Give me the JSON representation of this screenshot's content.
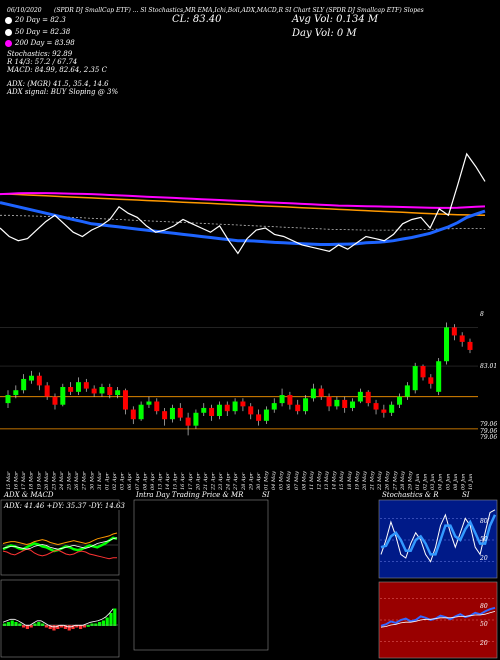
{
  "header": {
    "top_line": "(SPDR DJ SmallCap ETF) ... Sl Stochastics,MR  EMA,Ichi,Boll,ADX,MACD,R  SI Chart  SLY  (SPDR DJ Smallcap ETF) Slopes",
    "date": "06/10/2020",
    "cl_label": "CL: 83.40",
    "avg_vol_label": "Avg Vol: 0.134   M",
    "day_vol_label": "Day Vol: 0   M",
    "sma_lines": [
      {
        "text": "20  Day = 82.3",
        "color": "#ffffff"
      },
      {
        "text": "50  Day = 82.38",
        "color": "#ffffff"
      },
      {
        "text": "200  Day = 83.98",
        "color": "#ffffff"
      }
    ],
    "stoch_line": "Stochastics: 92.89",
    "r_line": "R                    14/3: 57.2 / 67.74",
    "macd_line": "MACD: 84.99, 82.64, 2.35 C",
    "adx_line": "ADX:                 (MGR) 41.5,  35.4,  14.6",
    "adx_signal_line": "ADX  signal:                        BUY Sloping @ 3%"
  },
  "colors": {
    "ema20": "#ffffff",
    "sma50": "#ffffff",
    "sma200": "#ff00ff",
    "ema_blue": "#1e64ff",
    "orange": "#ff9900",
    "bull": "#00ff00",
    "bear": "#ff0000",
    "grid": "#555555"
  },
  "chart_data": [
    {
      "type": "line",
      "name": "price-ema-panel",
      "series": [
        {
          "name": "price",
          "values": [
            82.4,
            82.0,
            81.8,
            81.9,
            82.3,
            82.7,
            83.0,
            82.6,
            82.2,
            82.0,
            82.3,
            82.5,
            82.8,
            83.4,
            83.1,
            82.9,
            82.5,
            82.2,
            82.3,
            82.5,
            82.8,
            82.6,
            82.4,
            82.2,
            82.5,
            81.8,
            81.2,
            81.9,
            82.3,
            82.4,
            82.1,
            82.0,
            81.8,
            81.6,
            81.5,
            81.4,
            81.3,
            81.6,
            81.4,
            81.7,
            82.0,
            81.9,
            81.8,
            82.1,
            82.6,
            82.8,
            82.9,
            82.4,
            83.3,
            83.0,
            84.4,
            85.9,
            85.3,
            84.6
          ]
        },
        {
          "name": "ema-blue",
          "values": [
            83.6,
            83.5,
            83.4,
            83.3,
            83.2,
            83.1,
            83.0,
            82.9,
            82.8,
            82.7,
            82.6,
            82.55,
            82.5,
            82.45,
            82.4,
            82.35,
            82.3,
            82.25,
            82.2,
            82.15,
            82.1,
            82.05,
            82.0,
            81.95,
            81.9,
            81.85,
            81.8,
            81.8,
            81.78,
            81.75,
            81.72,
            81.7,
            81.68,
            81.66,
            81.64,
            81.62,
            81.62,
            81.63,
            81.64,
            81.66,
            81.7,
            81.72,
            81.75,
            81.8,
            81.88,
            81.95,
            82.05,
            82.15,
            82.3,
            82.45,
            82.65,
            82.9,
            83.05,
            83.2
          ]
        },
        {
          "name": "ema-orange",
          "values": [
            84.0,
            84.0,
            83.98,
            83.96,
            83.94,
            83.92,
            83.9,
            83.88,
            83.86,
            83.84,
            83.82,
            83.8,
            83.78,
            83.76,
            83.74,
            83.72,
            83.7,
            83.68,
            83.66,
            83.64,
            83.62,
            83.6,
            83.58,
            83.56,
            83.54,
            83.52,
            83.5,
            83.48,
            83.46,
            83.44,
            83.42,
            83.4,
            83.38,
            83.36,
            83.34,
            83.32,
            83.3,
            83.28,
            83.26,
            83.24,
            83.22,
            83.2,
            83.18,
            83.16,
            83.14,
            83.12,
            83.1,
            83.08,
            83.06,
            83.04,
            83.03,
            83.02,
            83.01,
            83.0
          ]
        },
        {
          "name": "sma200",
          "values": [
            84.0,
            84.02,
            84.04,
            84.05,
            84.05,
            84.05,
            84.04,
            84.03,
            84.02,
            84.01,
            84.0,
            83.98,
            83.96,
            83.94,
            83.92,
            83.9,
            83.88,
            83.86,
            83.84,
            83.82,
            83.8,
            83.78,
            83.76,
            83.74,
            83.72,
            83.7,
            83.68,
            83.66,
            83.64,
            83.62,
            83.6,
            83.58,
            83.56,
            83.54,
            83.52,
            83.5,
            83.48,
            83.46,
            83.45,
            83.44,
            83.43,
            83.42,
            83.41,
            83.4,
            83.39,
            83.38,
            83.37,
            83.36,
            83.35,
            83.35,
            83.36,
            83.38,
            83.4,
            83.42
          ]
        },
        {
          "name": "sma50",
          "values": [
            83.0,
            83.0,
            82.98,
            82.97,
            82.96,
            82.95,
            82.94,
            82.92,
            82.9,
            82.88,
            82.86,
            82.84,
            82.82,
            82.8,
            82.78,
            82.76,
            82.74,
            82.72,
            82.7,
            82.68,
            82.66,
            82.64,
            82.62,
            82.6,
            82.58,
            82.56,
            82.54,
            82.52,
            82.5,
            82.48,
            82.46,
            82.44,
            82.42,
            82.4,
            82.38,
            82.36,
            82.34,
            82.33,
            82.32,
            82.31,
            82.3,
            82.3,
            82.3,
            82.3,
            82.31,
            82.32,
            82.33,
            82.34,
            82.35,
            82.36,
            82.37,
            82.38,
            82.38,
            82.38
          ]
        }
      ],
      "ylim": [
        79.0,
        87.5
      ]
    },
    {
      "type": "candlestick",
      "name": "candle-panel",
      "ylim": [
        79.0,
        88.0
      ],
      "right_labels": [
        "8",
        "83.01",
        "79.06",
        "79.06",
        "79.06"
      ],
      "dates": [
        "15 Mar",
        "16 Mar",
        "17 Mar",
        "18 Mar",
        "19 Mar",
        "20 Mar",
        "23 Mar",
        "24 Mar",
        "25 Mar",
        "26 Mar",
        "27 Mar",
        "30 Mar",
        "31 Mar",
        "01 Apr",
        "02 Apr",
        "03 Apr",
        "06 Apr",
        "07 Apr",
        "08 Apr",
        "09 Apr",
        "13 Apr",
        "14 Apr",
        "15 Apr",
        "16 Apr",
        "17 Apr",
        "20 Apr",
        "21 Apr",
        "22 Apr",
        "23 Apr",
        "24 Apr",
        "27 Apr",
        "28 Apr",
        "29 Apr",
        "30 Apr",
        "01 May",
        "04 May",
        "05 May",
        "06 May",
        "07 May",
        "08 May",
        "11 May",
        "12 May",
        "13 May",
        "14 May",
        "15 May",
        "18 May",
        "19 May",
        "20 May",
        "21 May",
        "22 May",
        "26 May",
        "27 May",
        "28 May",
        "29 May",
        "01 Jun",
        "02 Jun",
        "03 Jun",
        "04 Jun",
        "05 Jun",
        "08 Jun",
        "09 Jun",
        "10 Jun"
      ],
      "candles": [
        {
          "o": 81.6,
          "c": 82.1,
          "h": 82.4,
          "l": 81.3
        },
        {
          "o": 82.1,
          "c": 82.4,
          "h": 82.7,
          "l": 81.9
        },
        {
          "o": 82.4,
          "c": 83.1,
          "h": 83.4,
          "l": 82.2
        },
        {
          "o": 83.0,
          "c": 83.3,
          "h": 83.6,
          "l": 82.8
        },
        {
          "o": 83.3,
          "c": 82.7,
          "h": 83.5,
          "l": 82.4
        },
        {
          "o": 82.7,
          "c": 82.0,
          "h": 82.9,
          "l": 81.8
        },
        {
          "o": 82.0,
          "c": 81.5,
          "h": 82.2,
          "l": 81.2
        },
        {
          "o": 81.5,
          "c": 82.6,
          "h": 82.8,
          "l": 81.4
        },
        {
          "o": 82.6,
          "c": 82.3,
          "h": 82.9,
          "l": 82.1
        },
        {
          "o": 82.3,
          "c": 82.9,
          "h": 83.2,
          "l": 82.1
        },
        {
          "o": 82.9,
          "c": 82.5,
          "h": 83.1,
          "l": 82.3
        },
        {
          "o": 82.5,
          "c": 82.2,
          "h": 82.7,
          "l": 82.0
        },
        {
          "o": 82.2,
          "c": 82.6,
          "h": 82.8,
          "l": 82.0
        },
        {
          "o": 82.6,
          "c": 82.1,
          "h": 82.8,
          "l": 81.9
        },
        {
          "o": 82.1,
          "c": 82.4,
          "h": 82.6,
          "l": 81.9
        },
        {
          "o": 82.4,
          "c": 81.2,
          "h": 82.5,
          "l": 80.9
        },
        {
          "o": 81.2,
          "c": 80.6,
          "h": 81.4,
          "l": 80.3
        },
        {
          "o": 80.6,
          "c": 81.5,
          "h": 81.7,
          "l": 80.5
        },
        {
          "o": 81.5,
          "c": 81.7,
          "h": 82.0,
          "l": 81.3
        },
        {
          "o": 81.7,
          "c": 81.1,
          "h": 81.9,
          "l": 80.9
        },
        {
          "o": 81.1,
          "c": 80.6,
          "h": 81.3,
          "l": 80.2
        },
        {
          "o": 80.6,
          "c": 81.3,
          "h": 81.5,
          "l": 80.4
        },
        {
          "o": 81.3,
          "c": 80.7,
          "h": 81.6,
          "l": 80.5
        },
        {
          "o": 80.7,
          "c": 80.2,
          "h": 81.0,
          "l": 79.6
        },
        {
          "o": 80.2,
          "c": 81.0,
          "h": 81.2,
          "l": 80.0
        },
        {
          "o": 81.0,
          "c": 81.3,
          "h": 81.6,
          "l": 80.8
        },
        {
          "o": 81.3,
          "c": 80.8,
          "h": 81.5,
          "l": 80.5
        },
        {
          "o": 80.8,
          "c": 81.5,
          "h": 81.7,
          "l": 80.6
        },
        {
          "o": 81.5,
          "c": 81.1,
          "h": 81.7,
          "l": 80.8
        },
        {
          "o": 81.1,
          "c": 81.7,
          "h": 81.9,
          "l": 80.9
        },
        {
          "o": 81.7,
          "c": 81.4,
          "h": 81.9,
          "l": 81.1
        },
        {
          "o": 81.4,
          "c": 80.9,
          "h": 81.6,
          "l": 80.6
        },
        {
          "o": 80.9,
          "c": 80.5,
          "h": 81.2,
          "l": 80.2
        },
        {
          "o": 80.5,
          "c": 81.2,
          "h": 81.4,
          "l": 80.3
        },
        {
          "o": 81.2,
          "c": 81.6,
          "h": 81.9,
          "l": 81.0
        },
        {
          "o": 81.6,
          "c": 82.1,
          "h": 82.5,
          "l": 81.4
        },
        {
          "o": 82.1,
          "c": 81.5,
          "h": 82.3,
          "l": 81.2
        },
        {
          "o": 81.5,
          "c": 81.1,
          "h": 81.8,
          "l": 80.9
        },
        {
          "o": 81.1,
          "c": 81.9,
          "h": 82.1,
          "l": 80.9
        },
        {
          "o": 81.9,
          "c": 82.5,
          "h": 82.8,
          "l": 81.7
        },
        {
          "o": 82.5,
          "c": 82.0,
          "h": 82.7,
          "l": 81.8
        },
        {
          "o": 82.0,
          "c": 81.4,
          "h": 82.2,
          "l": 81.1
        },
        {
          "o": 81.4,
          "c": 81.8,
          "h": 82.0,
          "l": 81.2
        },
        {
          "o": 81.8,
          "c": 81.3,
          "h": 82.0,
          "l": 81.0
        },
        {
          "o": 81.3,
          "c": 81.7,
          "h": 81.9,
          "l": 81.1
        },
        {
          "o": 81.7,
          "c": 82.3,
          "h": 82.5,
          "l": 81.6
        },
        {
          "o": 82.3,
          "c": 81.6,
          "h": 82.4,
          "l": 81.4
        },
        {
          "o": 81.6,
          "c": 81.2,
          "h": 81.8,
          "l": 80.9
        },
        {
          "o": 81.2,
          "c": 81.0,
          "h": 81.5,
          "l": 80.7
        },
        {
          "o": 81.0,
          "c": 81.5,
          "h": 81.7,
          "l": 80.8
        },
        {
          "o": 81.5,
          "c": 82.0,
          "h": 82.2,
          "l": 81.3
        },
        {
          "o": 82.0,
          "c": 82.7,
          "h": 82.9,
          "l": 81.8
        },
        {
          "o": 82.4,
          "c": 83.9,
          "h": 84.1,
          "l": 82.2
        },
        {
          "o": 83.9,
          "c": 83.2,
          "h": 84.0,
          "l": 83.0
        },
        {
          "o": 83.2,
          "c": 82.8,
          "h": 83.4,
          "l": 82.5
        },
        {
          "o": 82.3,
          "c": 84.2,
          "h": 84.4,
          "l": 82.1
        },
        {
          "o": 84.2,
          "c": 86.3,
          "h": 86.6,
          "l": 84.0
        },
        {
          "o": 86.3,
          "c": 85.8,
          "h": 86.5,
          "l": 85.5
        },
        {
          "o": 85.8,
          "c": 85.4,
          "h": 86.0,
          "l": 85.1
        },
        {
          "o": 85.4,
          "c": 84.9,
          "h": 85.6,
          "l": 84.7
        }
      ]
    },
    {
      "type": "line",
      "name": "adx-macd-panel",
      "title": "ADX  & MACD",
      "subtitle": "ADX: 41.46  +DY: 35.37  -DY: 14.63",
      "series": [
        {
          "name": "adx",
          "values": [
            30,
            31,
            32,
            32,
            31,
            30,
            29,
            30,
            32,
            33,
            34,
            33,
            31,
            30,
            29,
            30,
            31,
            32,
            33,
            32,
            31,
            30,
            31,
            33,
            35,
            36,
            37,
            38,
            40,
            41
          ]
        },
        {
          "name": "plus-dy",
          "values": [
            24,
            26,
            28,
            27,
            25,
            24,
            26,
            28,
            30,
            29,
            27,
            26,
            24,
            22,
            23,
            25,
            27,
            26,
            24,
            23,
            24,
            26,
            28,
            27,
            26,
            28,
            30,
            33,
            36,
            35
          ]
        },
        {
          "name": "minus-dy",
          "values": [
            22,
            21,
            19,
            18,
            20,
            22,
            24,
            23,
            20,
            18,
            17,
            18,
            20,
            22,
            23,
            21,
            19,
            18,
            19,
            21,
            22,
            21,
            19,
            18,
            17,
            16,
            15,
            14,
            15,
            15
          ]
        }
      ],
      "ylim": [
        0,
        60
      ]
    },
    {
      "type": "bar",
      "name": "macd-histogram",
      "values": [
        0.1,
        0.2,
        0.3,
        0.2,
        0.1,
        -0.1,
        -0.2,
        -0.1,
        0.1,
        0.2,
        0.1,
        -0.1,
        -0.2,
        -0.3,
        -0.2,
        -0.1,
        -0.2,
        -0.3,
        -0.2,
        -0.1,
        -0.2,
        -0.1,
        0.0,
        0.1,
        0.1,
        0.2,
        0.3,
        0.5,
        0.8,
        1.1
      ]
    },
    {
      "type": "line",
      "name": "stochastics-panel",
      "title": "Stochastics & R",
      "suffix": "SI",
      "levels": [
        "80",
        "50",
        "20"
      ],
      "series": [
        {
          "name": "k",
          "values": [
            30,
            50,
            75,
            55,
            30,
            25,
            45,
            60,
            50,
            30,
            20,
            40,
            70,
            85,
            60,
            40,
            60,
            80,
            70,
            40,
            30,
            60,
            88,
            92
          ]
        },
        {
          "name": "d",
          "values": [
            40,
            42,
            55,
            60,
            50,
            35,
            35,
            50,
            55,
            45,
            30,
            30,
            50,
            70,
            70,
            55,
            50,
            65,
            75,
            60,
            45,
            45,
            70,
            85
          ]
        }
      ],
      "ylim": [
        0,
        100
      ]
    },
    {
      "type": "line",
      "name": "rsi-panel",
      "levels": [
        "80",
        "50",
        "20"
      ],
      "series": [
        {
          "name": "rsi",
          "values": [
            42,
            44,
            48,
            46,
            50,
            52,
            48,
            50,
            55,
            53,
            50,
            52,
            56,
            54,
            51,
            55,
            58,
            54,
            56,
            60,
            58,
            62,
            65,
            67
          ]
        },
        {
          "name": "rsi-signal",
          "values": [
            40,
            41,
            43,
            44,
            46,
            47,
            47,
            48,
            50,
            51,
            51,
            52,
            53,
            53,
            53,
            54,
            55,
            55,
            56,
            57,
            57,
            58,
            60,
            62
          ]
        }
      ],
      "ylim": [
        0,
        100
      ]
    }
  ],
  "intraday_panel": {
    "title": "Intra  Day Trading Price  & MR",
    "suffix": "SI"
  }
}
